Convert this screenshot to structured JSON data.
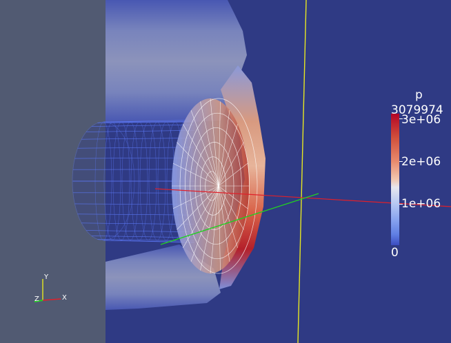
{
  "colors": {
    "background": "#2f3a84",
    "wall": "#515a72",
    "wireframe": "#5a75f0",
    "wireframe_white": "#ffffff",
    "axis_red": "#e0202a",
    "axis_green": "#22d022",
    "axis_yellow": "#e8e820",
    "pressure_high": "#b40426",
    "pressure_low": "#3b4cc0"
  },
  "colorbar": {
    "title": "p",
    "max_label": "3079974",
    "ticks": [
      {
        "label": "3e+06",
        "value": 3000000
      },
      {
        "label": "2e+06",
        "value": 2000000
      },
      {
        "label": "1e+06",
        "value": 1000000
      },
      {
        "label": "0",
        "value": 0
      }
    ]
  },
  "orientation_axes": {
    "y": "Y",
    "z": "Z",
    "x": "X"
  }
}
